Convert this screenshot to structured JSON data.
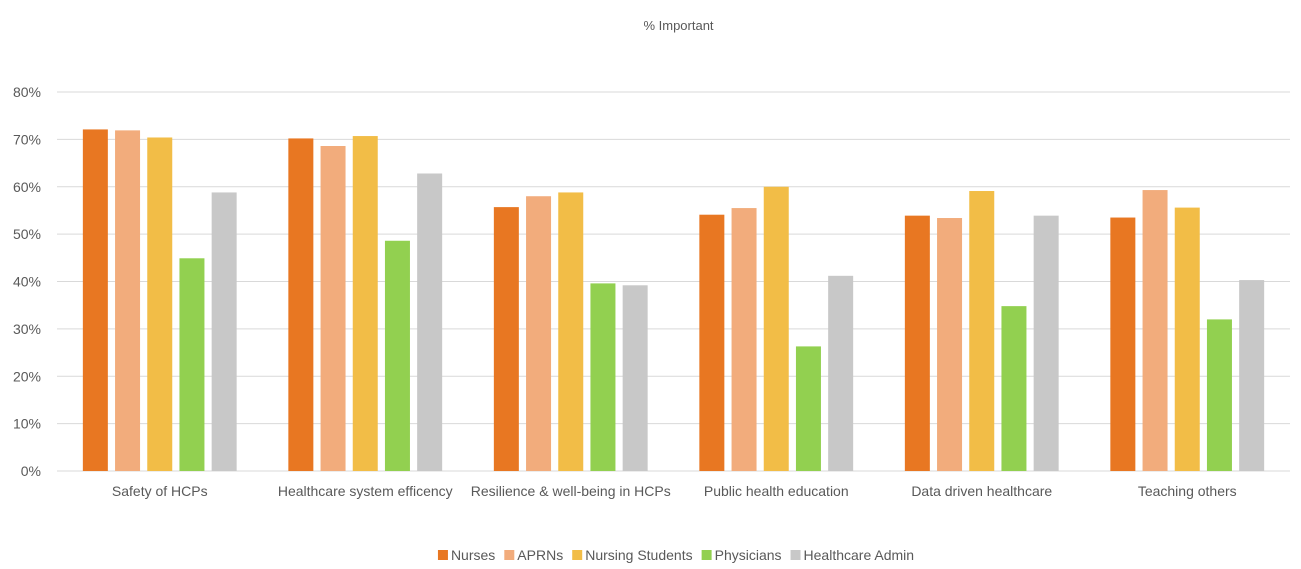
{
  "chart_data": {
    "type": "bar",
    "title": "% Important",
    "xlabel": "",
    "ylabel": "",
    "ylim": [
      0,
      80
    ],
    "yticks": [
      "0%",
      "10%",
      "20%",
      "30%",
      "40%",
      "50%",
      "60%",
      "70%",
      "80%"
    ],
    "grid": true,
    "legend_position": "bottom",
    "categories": [
      "Safety of HCPs",
      "Healthcare system efficency",
      "Resilience & well-being in HCPs",
      "Public health education",
      "Data driven healthcare",
      "Teaching others"
    ],
    "series": [
      {
        "name": "Nurses",
        "color": "#e87722",
        "values": [
          72.1,
          70.2,
          55.7,
          54.1,
          53.9,
          53.5
        ]
      },
      {
        "name": "APRNs",
        "color": "#f2ac7c",
        "values": [
          71.9,
          68.6,
          58.0,
          55.5,
          53.4,
          59.3
        ]
      },
      {
        "name": "Nursing Students",
        "color": "#f2bd47",
        "values": [
          70.4,
          70.7,
          58.8,
          60.0,
          59.1,
          55.6
        ]
      },
      {
        "name": "Physicians",
        "color": "#92d050",
        "values": [
          44.9,
          48.6,
          39.6,
          26.3,
          34.8,
          32.0
        ]
      },
      {
        "name": "Healthcare Admin",
        "color": "#c8c8c8",
        "values": [
          58.8,
          62.8,
          39.2,
          41.2,
          53.9,
          40.3
        ]
      }
    ]
  }
}
